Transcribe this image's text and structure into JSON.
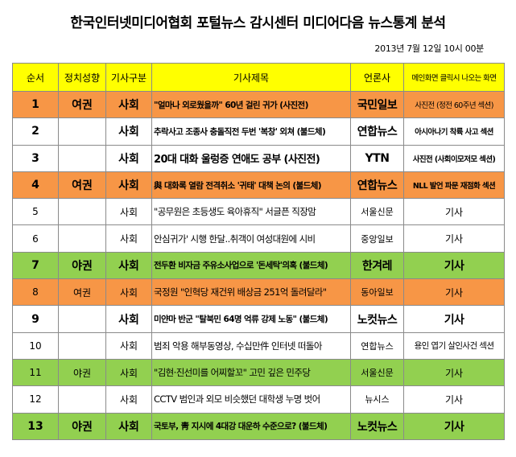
{
  "title": "한국인터넷미디어협회 포털뉴스 감시센터 미디어다음 뉴스통계 분석",
  "date": "2013년 7월 12일 10시 00분",
  "headers": {
    "no": "순서",
    "politics": "정치성향",
    "category": "기사구분",
    "article": "기사제목",
    "publisher": "언론사",
    "note": "메인화면 클릭시 나오는 화면"
  },
  "colors": {
    "header": "#ffff00",
    "orange": "#f79646",
    "green": "#92d050",
    "border": "#8a8a8a"
  },
  "rows": [
    {
      "no": "1",
      "politics": "여권",
      "category": "사회",
      "article": "\"얼마나 외로웠을까\" 60년 걸린 귀가 (사진전)",
      "publisher": "국민일보",
      "note": "사진전 (정전 60주년 섹션)"
    },
    {
      "no": "2",
      "politics": "",
      "category": "사회",
      "article": "추락사고 조종사 충돌직전 두번 '복창' 외쳐 (불드체)",
      "publisher": "연합뉴스",
      "note": "아시아나기 착륙 사고 섹션"
    },
    {
      "no": "3",
      "politics": "",
      "category": "사회",
      "article": "20대 대화 울렁증 연애도 공부 (사진전)",
      "publisher": "YTN",
      "note": "사진전 (사회이모저모 섹션)"
    },
    {
      "no": "4",
      "politics": "여권",
      "category": "사회",
      "article": "與 대화록 열람 전격취소 '귀태' 대책 논의 (불드체)",
      "publisher": "연합뉴스",
      "note": "NLL 발언 파문 재점화 섹션"
    },
    {
      "no": "5",
      "politics": "",
      "category": "사회",
      "article": "\"공무원은 초등생도 육아휴직\" 서글픈 직장맘",
      "publisher": "서울신문",
      "note": "기사"
    },
    {
      "no": "6",
      "politics": "",
      "category": "사회",
      "article": "안심귀가' 시행 한달..취객이 여성대원에 시비",
      "publisher": "중앙일보",
      "note": "기사"
    },
    {
      "no": "7",
      "politics": "야권",
      "category": "사회",
      "article": "전두환 비자금 주유소사업으로 '돈세탁'의혹 (불드체)",
      "publisher": "한겨레",
      "note": "기사"
    },
    {
      "no": "8",
      "politics": "여권",
      "category": "사회",
      "article": "국정원 \"인혁당 재건위 배상금 251억 돌려달라\"",
      "publisher": "동아일보",
      "note": "기사"
    },
    {
      "no": "9",
      "politics": "",
      "category": "사회",
      "article": "미얀마 반군 \"탈북민 64명 억류 강제 노동\" (불드체)",
      "publisher": "노컷뉴스",
      "note": "기사"
    },
    {
      "no": "10",
      "politics": "",
      "category": "사회",
      "article": "범죄 악용 해부동영상, 수십만件 인터넷 떠돌아",
      "publisher": "연합뉴스",
      "note": "용인 엽기 살인사건 섹션"
    },
    {
      "no": "11",
      "politics": "야권",
      "category": "사회",
      "article": "\"김현·진선미를 어찌할꼬\" 고민 깊은 민주당",
      "publisher": "서울신문",
      "note": "기사"
    },
    {
      "no": "12",
      "politics": "",
      "category": "사회",
      "article": "CCTV 범인과 외모 비슷했던 대학생 누명 벗어",
      "publisher": "뉴시스",
      "note": "기사"
    },
    {
      "no": "13",
      "politics": "야권",
      "category": "사회",
      "article": "국토부, 靑 지시에 4대강 대운하 수준으로? (불드체)",
      "publisher": "노컷뉴스",
      "note": "기사"
    }
  ]
}
